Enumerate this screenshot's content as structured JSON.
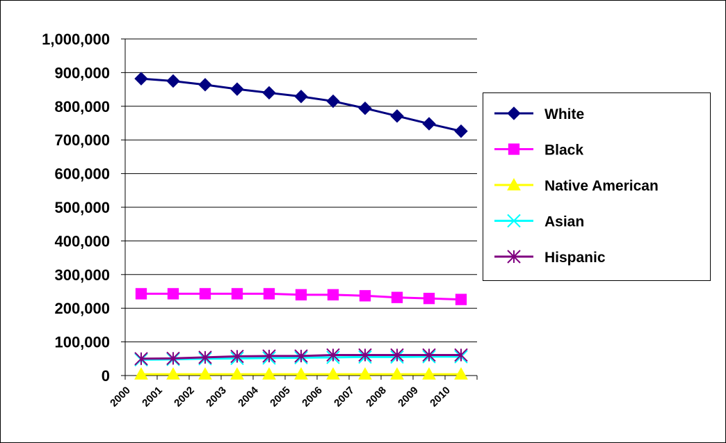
{
  "chart_data": {
    "type": "line",
    "title": "",
    "xlabel": "",
    "ylabel": "",
    "x": [
      "2000",
      "2001",
      "2002",
      "2003",
      "2004",
      "2005",
      "2006",
      "2007",
      "2008",
      "2009",
      "2010"
    ],
    "ylim": [
      0,
      1000000
    ],
    "yticks": [
      0,
      100000,
      200000,
      300000,
      400000,
      500000,
      600000,
      700000,
      800000,
      900000,
      1000000
    ],
    "ytick_labels": [
      "0",
      "100,000",
      "200,000",
      "300,000",
      "400,000",
      "500,000",
      "600,000",
      "700,000",
      "800,000",
      "900,000",
      "1,000,000"
    ],
    "grid": "horizontal",
    "legend_position": "right",
    "series": [
      {
        "name": "White",
        "color": "#000080",
        "marker": "diamond",
        "values": [
          882000,
          875000,
          864000,
          851000,
          840000,
          829000,
          815000,
          794000,
          771000,
          748000,
          726000
        ]
      },
      {
        "name": "Black",
        "color": "#FF00FF",
        "marker": "square",
        "values": [
          243000,
          243000,
          243000,
          243000,
          243000,
          240000,
          240000,
          237000,
          232000,
          229000,
          226000
        ]
      },
      {
        "name": "Native American",
        "color": "#FFFF00",
        "marker": "triangle",
        "values": [
          4000,
          4000,
          4000,
          4000,
          4000,
          4000,
          4000,
          4000,
          4000,
          4000,
          4000
        ]
      },
      {
        "name": "Asian",
        "color": "#00FFFF",
        "marker": "x",
        "values": [
          47000,
          48000,
          50000,
          51000,
          52000,
          53000,
          54000,
          55000,
          55000,
          56000,
          56000
        ]
      },
      {
        "name": "Hispanic",
        "color": "#800080",
        "marker": "asterisk",
        "values": [
          50000,
          51000,
          54000,
          57000,
          58000,
          58000,
          61000,
          61000,
          61000,
          61000,
          61000
        ]
      }
    ]
  }
}
